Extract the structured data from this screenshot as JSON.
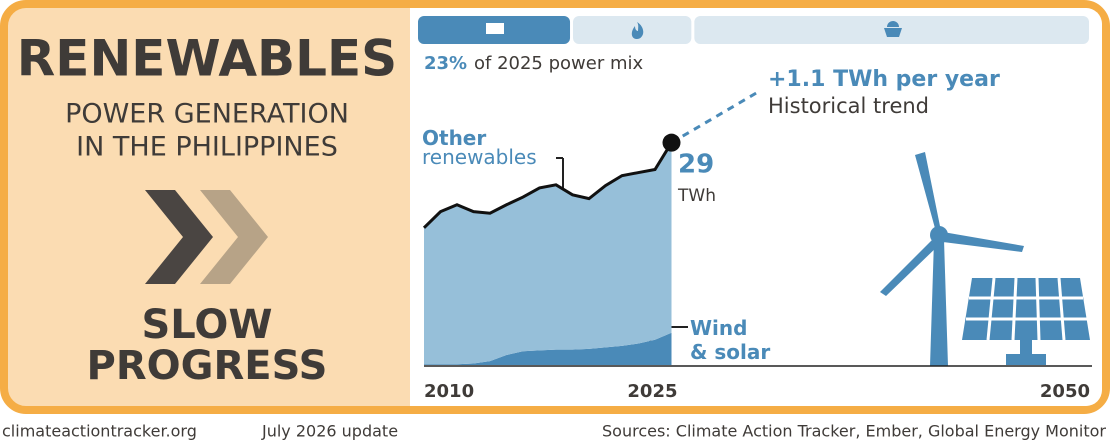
{
  "left": {
    "title": "RENEWABLES",
    "subtitle_lines": [
      "POWER GENERATION",
      "IN THE PHILIPPINES"
    ],
    "status_lines": [
      "SLOW",
      "PROGRESS"
    ]
  },
  "power_mix": {
    "values": [
      23,
      18,
      59
    ],
    "colors": [
      "#4a8ab8",
      "#dce8f0",
      "#dce8f0"
    ],
    "highlight_label": "23%",
    "caption": "of 2025 power mix"
  },
  "chart_data": {
    "type": "area",
    "x": [
      2010,
      2011,
      2012,
      2013,
      2014,
      2015,
      2016,
      2017,
      2018,
      2019,
      2020,
      2021,
      2022,
      2023,
      2024,
      2025
    ],
    "xlim": [
      2010,
      2050
    ],
    "xticks": [
      2010,
      2025,
      2050
    ],
    "ylim": [
      0,
      42
    ],
    "stacked": true,
    "series": [
      {
        "name": "Wind & solar",
        "color": "#4a8ab8",
        "values": [
          0.1,
          0.1,
          0.1,
          0.2,
          0.5,
          1.3,
          1.8,
          1.9,
          2.0,
          2.0,
          2.1,
          2.3,
          2.5,
          2.8,
          3.3,
          4.2
        ]
      },
      {
        "name": "Other renewables",
        "color": "#96bfd9",
        "values": [
          17.8,
          19.9,
          20.8,
          19.8,
          19.3,
          19.6,
          20.1,
          21.2,
          21.5,
          20.2,
          19.6,
          21.1,
          22.2,
          22.3,
          22.2,
          24.8
        ]
      }
    ],
    "end_value": 29,
    "end_unit": "TWh",
    "trend_label": "+1.1 TWh per year",
    "trend_caption": "Historical trend"
  },
  "footer": {
    "site": "climateactiontracker.org",
    "update": "July 2026 update",
    "sources": "Sources: Climate Action Tracker, Ember, Global Energy Monitor"
  }
}
